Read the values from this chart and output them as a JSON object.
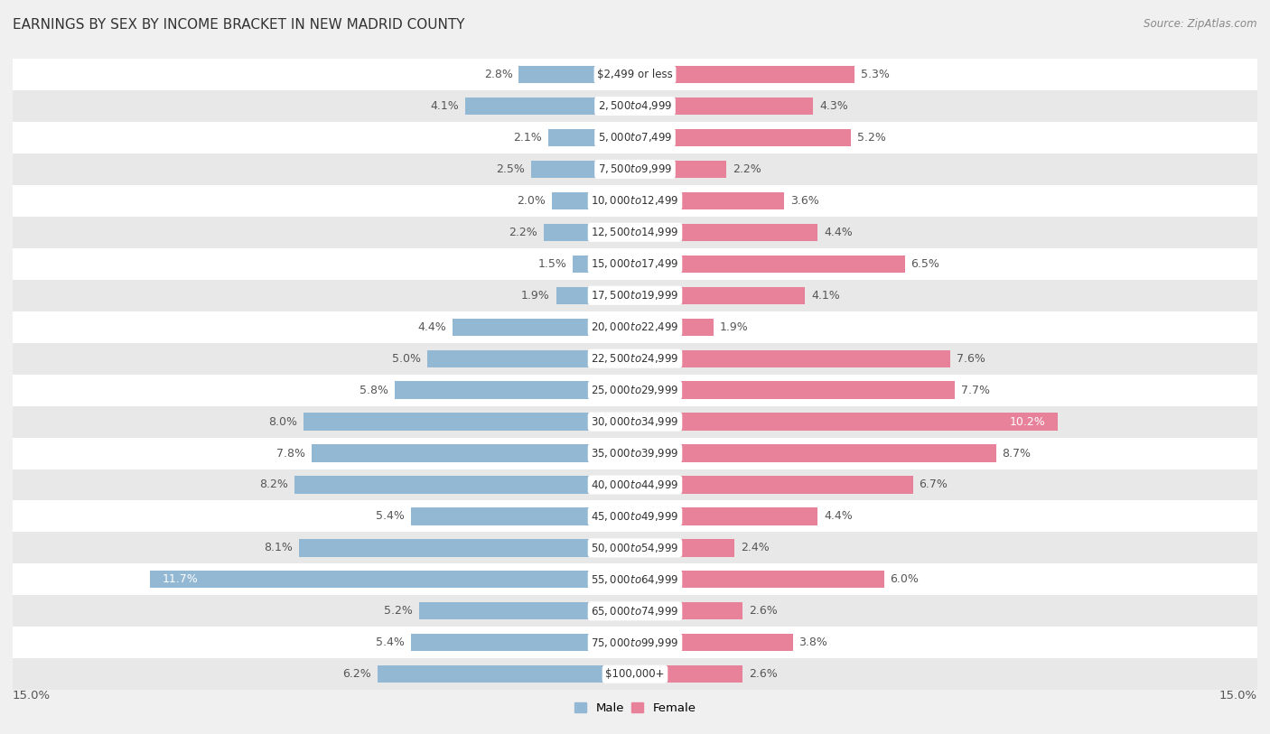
{
  "title": "EARNINGS BY SEX BY INCOME BRACKET IN NEW MADRID COUNTY",
  "source": "Source: ZipAtlas.com",
  "categories": [
    "$2,499 or less",
    "$2,500 to $4,999",
    "$5,000 to $7,499",
    "$7,500 to $9,999",
    "$10,000 to $12,499",
    "$12,500 to $14,999",
    "$15,000 to $17,499",
    "$17,500 to $19,999",
    "$20,000 to $22,499",
    "$22,500 to $24,999",
    "$25,000 to $29,999",
    "$30,000 to $34,999",
    "$35,000 to $39,999",
    "$40,000 to $44,999",
    "$45,000 to $49,999",
    "$50,000 to $54,999",
    "$55,000 to $64,999",
    "$65,000 to $74,999",
    "$75,000 to $99,999",
    "$100,000+"
  ],
  "male_values": [
    2.8,
    4.1,
    2.1,
    2.5,
    2.0,
    2.2,
    1.5,
    1.9,
    4.4,
    5.0,
    5.8,
    8.0,
    7.8,
    8.2,
    5.4,
    8.1,
    11.7,
    5.2,
    5.4,
    6.2
  ],
  "female_values": [
    5.3,
    4.3,
    5.2,
    2.2,
    3.6,
    4.4,
    6.5,
    4.1,
    1.9,
    7.6,
    7.7,
    10.2,
    8.7,
    6.7,
    4.4,
    2.4,
    6.0,
    2.6,
    3.8,
    2.6
  ],
  "male_color": "#92b8d4",
  "female_color": "#e8829a",
  "male_label": "Male",
  "female_label": "Female",
  "xlim": 15.0,
  "bg_color": "#f0f0f0",
  "row_light": "#ffffff",
  "row_dark": "#e8e8e8",
  "title_fontsize": 11,
  "label_fontsize": 9,
  "source_fontsize": 8.5,
  "label_color": "#555555",
  "cat_label_fontsize": 8.5,
  "inside_label_color": "#ffffff",
  "inside_label_vals_male": [
    11.7
  ],
  "inside_label_vals_female": [
    10.2
  ]
}
